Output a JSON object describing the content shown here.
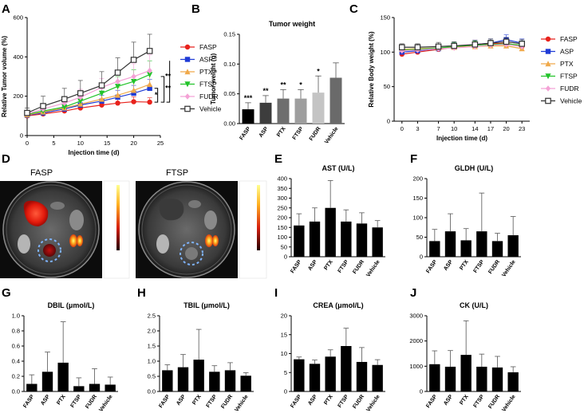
{
  "chart_data": [
    {
      "panel": "A",
      "type": "line",
      "title": "",
      "xlabel": "Injection time (d)",
      "ylabel": "Relative Tumor volume (%)",
      "xlim": [
        0,
        25
      ],
      "ylim": [
        0,
        600
      ],
      "xticks": [
        "0",
        "5",
        "10",
        "15",
        "20",
        "25"
      ],
      "yticks": [
        "0",
        "200",
        "400",
        "600"
      ],
      "x": [
        0,
        3,
        7,
        10,
        14,
        17,
        20,
        23
      ],
      "legend_position": "right",
      "series": [
        {
          "name": "FASP",
          "color": "#e8221c",
          "marker": "circle",
          "values": [
            100,
            110,
            125,
            140,
            155,
            165,
            172,
            170
          ],
          "err": [
            12,
            15,
            18,
            22,
            20,
            22,
            25,
            22
          ]
        },
        {
          "name": "ASP",
          "color": "#1f3bd6",
          "marker": "square",
          "values": [
            103,
            115,
            135,
            155,
            175,
            195,
            215,
            240
          ],
          "err": [
            12,
            18,
            22,
            25,
            30,
            35,
            40,
            45
          ]
        },
        {
          "name": "PTX",
          "color": "#f0a94a",
          "marker": "triangle-up",
          "values": [
            105,
            120,
            140,
            160,
            185,
            205,
            230,
            260
          ],
          "err": [
            15,
            20,
            25,
            30,
            35,
            40,
            50,
            60
          ]
        },
        {
          "name": "FTSP",
          "color": "#22c32a",
          "marker": "triangle-down",
          "values": [
            108,
            125,
            145,
            175,
            215,
            250,
            275,
            310
          ],
          "err": [
            15,
            20,
            28,
            35,
            40,
            50,
            60,
            70
          ]
        },
        {
          "name": "FUDR",
          "color": "#f4a2d6",
          "marker": "diamond",
          "values": [
            110,
            135,
            165,
            195,
            245,
            275,
            300,
            330
          ],
          "err": [
            15,
            25,
            30,
            40,
            45,
            55,
            65,
            80
          ]
        },
        {
          "name": "Vehicle",
          "color": "#333333",
          "marker": "square-open",
          "values": [
            115,
            150,
            185,
            215,
            255,
            320,
            385,
            430
          ],
          "err": [
            25,
            50,
            55,
            65,
            70,
            75,
            90,
            85
          ]
        }
      ],
      "annotations": [
        "*",
        "**",
        "**"
      ]
    },
    {
      "panel": "B",
      "type": "bar",
      "title": "Tumor weight",
      "xlabel": "",
      "ylabel": "Tumor weight (g)",
      "ylim": [
        0,
        0.15
      ],
      "yticks": [
        "0.00",
        "0.05",
        "0.10",
        "0.15"
      ],
      "categories": [
        "FASP",
        "ASP",
        "PTX",
        "FTSP",
        "FUDR",
        "Vehicle"
      ],
      "values": [
        0.024,
        0.035,
        0.042,
        0.042,
        0.052,
        0.077
      ],
      "err": [
        0.011,
        0.012,
        0.015,
        0.015,
        0.028,
        0.025
      ],
      "colors": [
        "#000000",
        "#3d3d3d",
        "#6e6e6e",
        "#9e9e9e",
        "#c4c4c4",
        "#6a6a6a"
      ],
      "significance": [
        "***",
        "**",
        "**",
        "*",
        "*",
        ""
      ]
    },
    {
      "panel": "C",
      "type": "line",
      "title": "",
      "xlabel": "Injection time (d)",
      "ylabel": "Relative Body weight (%)",
      "xlim": [
        -1.5,
        24.5
      ],
      "ylim": [
        0,
        150
      ],
      "xticks": [
        "0",
        "3",
        "7",
        "10",
        "14",
        "17",
        "20",
        "23"
      ],
      "yticks": [
        "0",
        "50",
        "100",
        "150"
      ],
      "x": [
        0,
        3,
        7,
        10,
        14,
        17,
        20,
        23
      ],
      "legend_position": "right",
      "series": [
        {
          "name": "FASP",
          "color": "#e8221c",
          "marker": "circle",
          "values": [
            97,
            100,
            104,
            107,
            110,
            112,
            113,
            108
          ],
          "err": [
            4,
            4,
            5,
            5,
            5,
            5,
            5,
            5
          ]
        },
        {
          "name": "ASP",
          "color": "#1f3bd6",
          "marker": "square",
          "values": [
            100,
            102,
            105,
            108,
            111,
            113,
            118,
            113
          ],
          "err": [
            4,
            5,
            5,
            6,
            6,
            6,
            7,
            6
          ]
        },
        {
          "name": "PTX",
          "color": "#f0a94a",
          "marker": "triangle-up",
          "values": [
            104,
            105,
            106,
            107,
            108,
            109,
            109,
            105
          ],
          "err": [
            5,
            5,
            5,
            5,
            5,
            6,
            6,
            6
          ]
        },
        {
          "name": "FTSP",
          "color": "#22c32a",
          "marker": "triangle-down",
          "values": [
            103,
            104,
            106,
            108,
            110,
            111,
            112,
            110
          ],
          "err": [
            5,
            5,
            5,
            6,
            6,
            6,
            6,
            6
          ]
        },
        {
          "name": "FUDR",
          "color": "#f4a2d6",
          "marker": "diamond",
          "values": [
            102,
            103,
            105,
            106,
            108,
            110,
            111,
            108
          ],
          "err": [
            5,
            5,
            5,
            5,
            6,
            6,
            6,
            6
          ]
        },
        {
          "name": "Vehicle",
          "color": "#333333",
          "marker": "square-open",
          "values": [
            107,
            107,
            108,
            109,
            111,
            113,
            115,
            112
          ],
          "err": [
            5,
            5,
            6,
            6,
            6,
            6,
            6,
            6
          ]
        }
      ]
    },
    {
      "panel": "E",
      "type": "bar",
      "title": "AST (U/L)",
      "xlabel": "",
      "ylabel": "",
      "ylim": [
        0,
        400
      ],
      "yticks": [
        "0",
        "50",
        "100",
        "150",
        "200",
        "250",
        "300",
        "350",
        "400"
      ],
      "categories": [
        "FASP",
        "ASP",
        "PTX",
        "FTSP",
        "FUDR",
        "Vehicle"
      ],
      "values": [
        160,
        180,
        250,
        180,
        170,
        150
      ],
      "err": [
        60,
        70,
        140,
        60,
        55,
        35
      ]
    },
    {
      "panel": "F",
      "type": "bar",
      "title": "GLDH (U/L)",
      "xlabel": "",
      "ylabel": "",
      "ylim": [
        0,
        200
      ],
      "yticks": [
        "0",
        "50",
        "100",
        "150",
        "200"
      ],
      "categories": [
        "FASP",
        "ASP",
        "PTX",
        "FTSP",
        "FUDR",
        "Vehicle"
      ],
      "values": [
        40,
        65,
        42,
        65,
        40,
        55
      ],
      "err": [
        30,
        45,
        30,
        98,
        20,
        48
      ]
    },
    {
      "panel": "G",
      "type": "bar",
      "title": "DBIL (μmol/L)",
      "xlabel": "",
      "ylabel": "",
      "ylim": [
        0,
        1.0
      ],
      "yticks": [
        "0.0",
        "0.2",
        "0.4",
        "0.6",
        "0.8",
        "1.0"
      ],
      "categories": [
        "FASP",
        "ASP",
        "PTX",
        "FTSP",
        "FUDR",
        "Vehicle"
      ],
      "values": [
        0.1,
        0.26,
        0.38,
        0.07,
        0.1,
        0.09
      ],
      "err": [
        0.12,
        0.26,
        0.54,
        0.11,
        0.2,
        0.1
      ]
    },
    {
      "panel": "H",
      "type": "bar",
      "title": "TBIL (μmol/L)",
      "xlabel": "",
      "ylabel": "",
      "ylim": [
        0,
        2.5
      ],
      "yticks": [
        "0.0",
        "0.5",
        "1.0",
        "1.5",
        "2.0",
        "2.5"
      ],
      "categories": [
        "FASP",
        "ASP",
        "PTX",
        "FTSP",
        "FUDR",
        "Vehicle"
      ],
      "values": [
        0.7,
        0.8,
        1.05,
        0.65,
        0.7,
        0.52
      ],
      "err": [
        0.18,
        0.42,
        1.0,
        0.2,
        0.25,
        0.1
      ]
    },
    {
      "panel": "I",
      "type": "bar",
      "title": "CREA (μmol/L)",
      "xlabel": "",
      "ylabel": "",
      "ylim": [
        0,
        20
      ],
      "yticks": [
        "0",
        "5",
        "10",
        "15",
        "20"
      ],
      "categories": [
        "FASP",
        "ASP",
        "PTX",
        "FTSP",
        "FUDR",
        "Vehicle"
      ],
      "values": [
        8.5,
        7.3,
        9.2,
        12.0,
        7.8,
        7.0
      ],
      "err": [
        0.6,
        1.0,
        1.8,
        4.7,
        3.8,
        1.4
      ]
    },
    {
      "panel": "J",
      "type": "bar",
      "title": "CK (U/L)",
      "xlabel": "",
      "ylabel": "",
      "ylim": [
        0,
        3000
      ],
      "yticks": [
        "0",
        "1000",
        "2000",
        "3000"
      ],
      "categories": [
        "FASP",
        "ASP",
        "PTX",
        "FTSP",
        "FUDR",
        "Vehicle"
      ],
      "values": [
        1080,
        980,
        1450,
        980,
        950,
        760
      ],
      "err": [
        530,
        640,
        1350,
        500,
        440,
        220
      ]
    }
  ],
  "panel_D": {
    "label_left": "FASP",
    "label_right": "FTSP"
  },
  "panel_letters": [
    "A",
    "B",
    "C",
    "D",
    "E",
    "F",
    "G",
    "H",
    "I",
    "J"
  ]
}
